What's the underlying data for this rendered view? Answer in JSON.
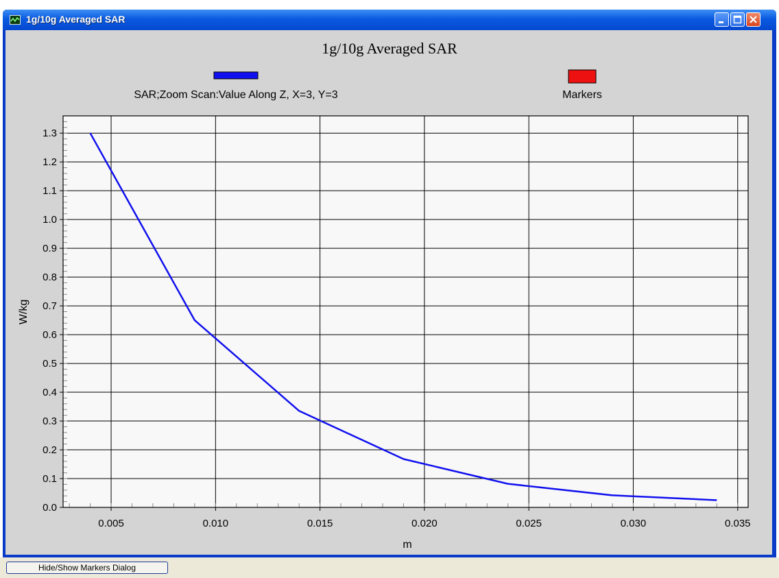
{
  "window": {
    "title": "1g/10g Averaged SAR",
    "buttons": [
      "minimize",
      "maximize",
      "close"
    ]
  },
  "statusbar": {
    "button_label": "Hide/Show Markers Dialog"
  },
  "colors": {
    "series": "#1010ee",
    "markers": "#ee1111",
    "plot_bg": "#f8f8f8",
    "panel_bg": "#d4d4d4"
  },
  "chart_data": {
    "type": "line",
    "title": "1g/10g Averaged SAR",
    "xlabel": "m",
    "ylabel": "W/kg",
    "xlim": [
      0.0027,
      0.0355
    ],
    "ylim": [
      0.0,
      1.36
    ],
    "x_ticks": [
      "0.005",
      "0.010",
      "0.015",
      "0.020",
      "0.025",
      "0.030",
      "0.035"
    ],
    "y_ticks": [
      "0.0",
      "0.1",
      "0.2",
      "0.3",
      "0.4",
      "0.5",
      "0.6",
      "0.7",
      "0.8",
      "0.9",
      "1.0",
      "1.1",
      "1.2",
      "1.3"
    ],
    "grid": true,
    "legend": [
      {
        "label": "SAR;Zoom Scan:Value Along Z, X=3, Y=3",
        "color": "#1010ee"
      },
      {
        "label": "Markers",
        "color": "#ee1111"
      }
    ],
    "series": [
      {
        "name": "SAR;Zoom Scan:Value Along Z, X=3, Y=3",
        "x": [
          0.004,
          0.009,
          0.014,
          0.019,
          0.024,
          0.029,
          0.034
        ],
        "y": [
          1.3,
          0.65,
          0.335,
          0.168,
          0.082,
          0.042,
          0.025
        ]
      }
    ]
  }
}
